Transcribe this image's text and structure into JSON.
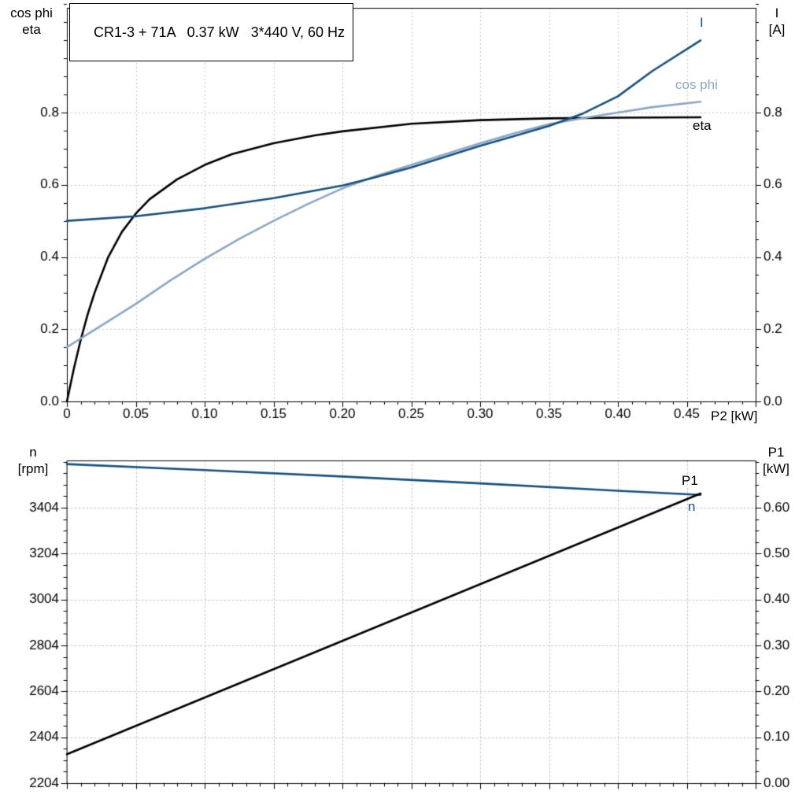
{
  "title": "CR1-3 + 71A   0.37 kW   3*440 V, 60 Hz",
  "colors": {
    "curve_dark_blue": "#17517e",
    "curve_light_blue": "#8ba7c7",
    "curve_black": "#000000",
    "grid": "#c6c6c6",
    "frame": "#000000",
    "background": "#ffffff"
  },
  "labels": {
    "top_left_1": "cos phi",
    "top_left_2": "eta",
    "top_right_1": "I",
    "top_right_2": "[A]",
    "bottom_left_1": "n",
    "bottom_left_2": "[rpm]",
    "bottom_right_1": "P1",
    "bottom_right_2": "[kW]",
    "x_axis": "P2 [kW]",
    "curve_I": "I",
    "curve_cosphi": "cos phi",
    "curve_eta": "eta",
    "curve_P1": "P1",
    "curve_n": "n"
  },
  "chart_data": [
    {
      "id": "top",
      "type": "line",
      "title": "CR1-3 + 71A   0.37 kW   3*440 V, 60 Hz",
      "xlabel": "P2 [kW]",
      "grid": true,
      "x_axis": {
        "lim": [
          0,
          0.5
        ],
        "ticks": [
          0,
          0.05,
          0.1,
          0.15,
          0.2,
          0.25,
          0.3,
          0.35,
          0.4,
          0.45,
          0.5
        ],
        "tick_labels": [
          "0",
          "0.05",
          "0.10",
          "0.15",
          "0.20",
          "0.25",
          "0.30",
          "0.35",
          "0.40",
          "0.45",
          ""
        ],
        "minor_step": 0.01
      },
      "left_axis": {
        "label": "cos phi / eta",
        "lim": [
          0,
          1.09
        ],
        "ticks": [
          0,
          0.2,
          0.4,
          0.6,
          0.8
        ],
        "tick_labels": [
          "0.0",
          "0.2",
          "0.4",
          "0.6",
          "0.8"
        ],
        "minor_step": 0.05
      },
      "right_axis": {
        "label": "I [A]",
        "lim": [
          0,
          1.09
        ],
        "ticks": [
          0,
          0.2,
          0.4,
          0.6,
          0.8
        ],
        "tick_labels": [
          "0.0",
          "0.2",
          "0.4",
          "0.6",
          "0.8"
        ],
        "minor_step": 0.05
      },
      "series": [
        {
          "name": "eta",
          "axis": "left",
          "color": "#000000",
          "x": [
            0,
            0.005,
            0.01,
            0.015,
            0.02,
            0.03,
            0.04,
            0.05,
            0.06,
            0.08,
            0.1,
            0.12,
            0.15,
            0.18,
            0.2,
            0.25,
            0.3,
            0.35,
            0.4,
            0.46
          ],
          "y": [
            0,
            0.09,
            0.17,
            0.24,
            0.3,
            0.4,
            0.47,
            0.52,
            0.56,
            0.615,
            0.655,
            0.685,
            0.715,
            0.737,
            0.748,
            0.769,
            0.779,
            0.784,
            0.786,
            0.787
          ]
        },
        {
          "name": "cos phi",
          "axis": "left",
          "color": "#8ba7c7",
          "x": [
            0,
            0.025,
            0.05,
            0.075,
            0.1,
            0.125,
            0.15,
            0.175,
            0.2,
            0.225,
            0.25,
            0.275,
            0.3,
            0.325,
            0.35,
            0.375,
            0.4,
            0.425,
            0.46
          ],
          "y": [
            0.15,
            0.21,
            0.27,
            0.335,
            0.395,
            0.45,
            0.5,
            0.547,
            0.59,
            0.625,
            0.655,
            0.685,
            0.715,
            0.743,
            0.768,
            0.785,
            0.8,
            0.815,
            0.83
          ]
        },
        {
          "name": "I",
          "axis": "left",
          "color": "#17517e",
          "x": [
            0,
            0.05,
            0.1,
            0.15,
            0.2,
            0.225,
            0.25,
            0.275,
            0.3,
            0.325,
            0.35,
            0.375,
            0.4,
            0.425,
            0.46
          ],
          "y": [
            0.5,
            0.513,
            0.535,
            0.563,
            0.598,
            0.622,
            0.648,
            0.678,
            0.708,
            0.735,
            0.763,
            0.798,
            0.845,
            0.915,
            1.0
          ]
        }
      ]
    },
    {
      "id": "bottom",
      "type": "line",
      "grid": true,
      "x_axis": {
        "lim": [
          0,
          0.5
        ],
        "ticks": [
          0,
          0.05,
          0.1,
          0.15,
          0.2,
          0.25,
          0.3,
          0.35,
          0.4,
          0.45,
          0.5
        ],
        "tick_labels": [],
        "minor_step": 0.01
      },
      "left_axis": {
        "label": "n [rpm]",
        "lim": [
          2204,
          3610
        ],
        "ticks": [
          2204,
          2404,
          2604,
          2804,
          3004,
          3204,
          3404
        ],
        "tick_labels": [
          "2204",
          "2404",
          "2604",
          "2804",
          "3004",
          "3204",
          "3404"
        ],
        "minor_step": 50
      },
      "right_axis": {
        "label": "P1 [kW]",
        "lim": [
          0,
          0.703
        ],
        "ticks": [
          0,
          0.1,
          0.2,
          0.3,
          0.4,
          0.5,
          0.6
        ],
        "tick_labels": [
          "0.00",
          "0.10",
          "0.20",
          "0.30",
          "0.40",
          "0.50",
          "0.60"
        ],
        "minor_step": 0.025
      },
      "series": [
        {
          "name": "n",
          "axis": "left",
          "color": "#17517e",
          "x": [
            0,
            0.1,
            0.2,
            0.3,
            0.4,
            0.46
          ],
          "y": [
            3594,
            3568,
            3540,
            3510,
            3478,
            3460
          ]
        },
        {
          "name": "P1",
          "axis": "right",
          "color": "#000000",
          "x": [
            0,
            0.46
          ],
          "y": [
            0.063,
            0.631
          ]
        }
      ]
    }
  ]
}
